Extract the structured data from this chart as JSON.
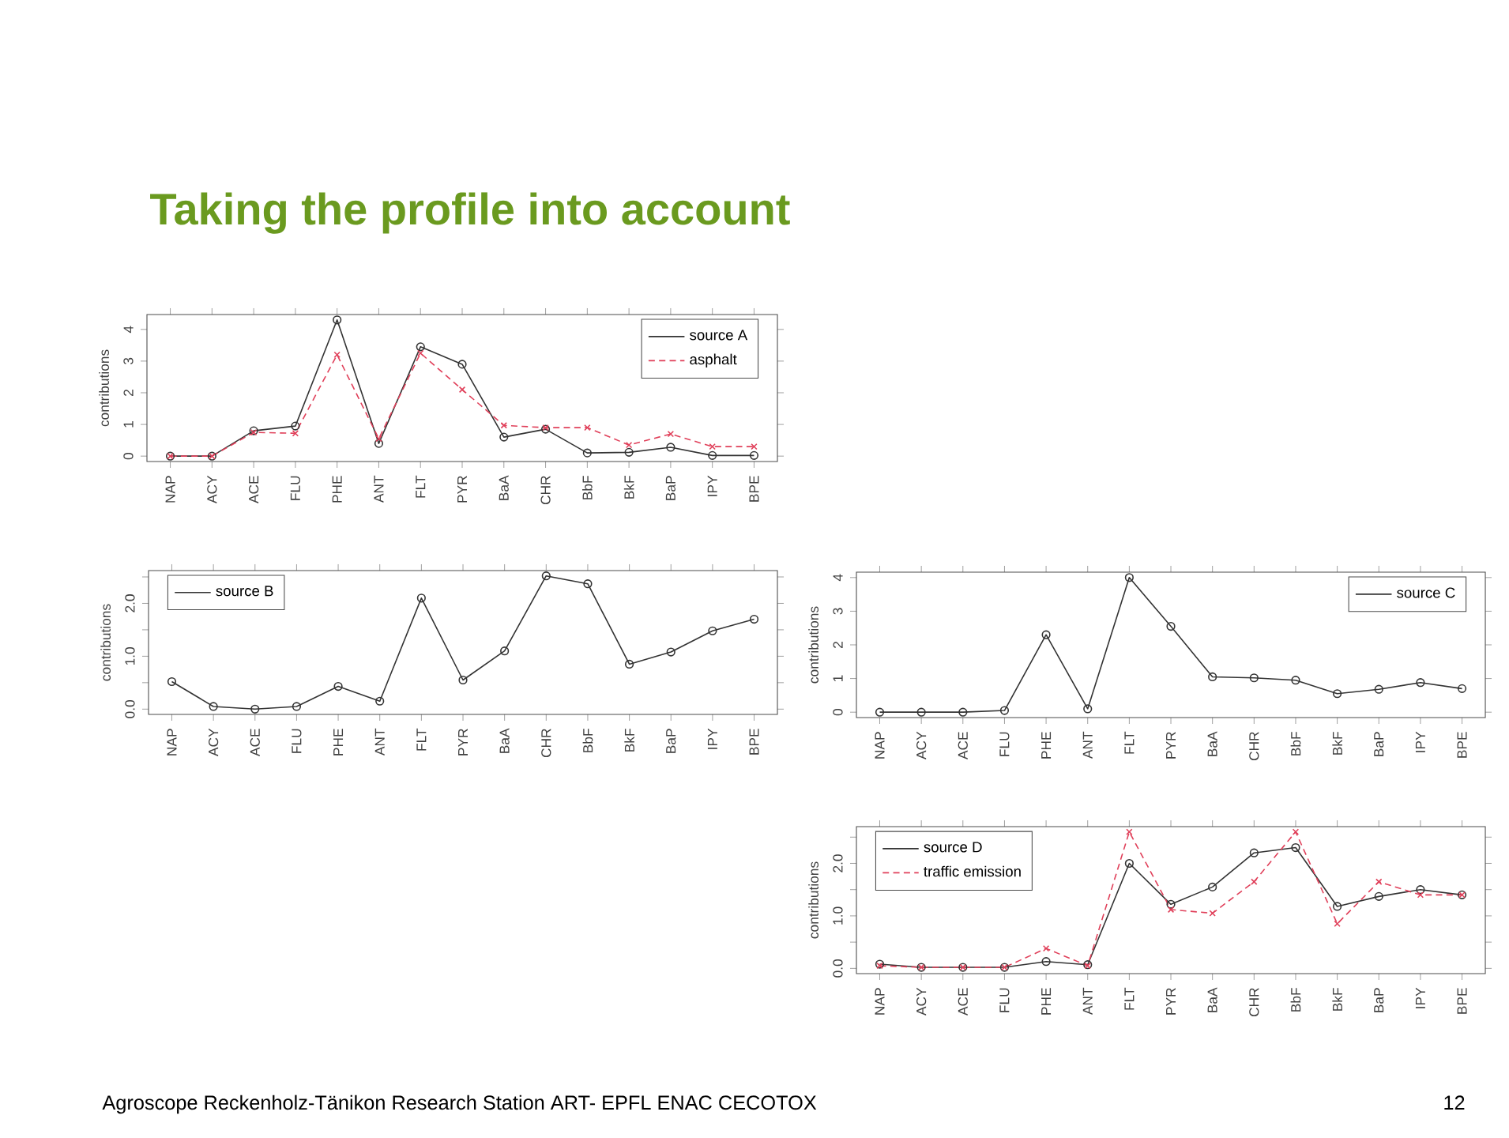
{
  "chart_data": [
    {
      "type": "line",
      "title": "Taking the profile into account",
      "ylabel": "contributions",
      "annotations": [
        "Agroscope Reckenholz-Tänikon Research Station ART- EPFL ENAC CECOTOX",
        "12"
      ],
      "categories": [
        "NAP",
        "ACY",
        "ACE",
        "FLU",
        "PHE",
        "ANT",
        "FLT",
        "PYR",
        "BaA",
        "CHR",
        "BbF",
        "BkF",
        "BaP",
        "IPY",
        "BPE"
      ],
      "series": [
        {
          "name": "source A",
          "color": "#333333",
          "marker": "circle",
          "line_style": "solid",
          "values": [
            0,
            0,
            0.8,
            0.95,
            4.3,
            0.4,
            3.45,
            2.9,
            0.6,
            0.85,
            0.1,
            0.12,
            0.28,
            0.02,
            0.02
          ]
        },
        {
          "name": "asphalt",
          "color": "#e0405a",
          "marker": "cross",
          "line_style": "dashed",
          "values": [
            0,
            0,
            0.75,
            0.72,
            3.2,
            0.55,
            3.25,
            2.1,
            0.97,
            0.9,
            0.9,
            0.35,
            0.7,
            0.3,
            0.3
          ]
        }
      ],
      "ylim": [
        -0.17,
        4.47
      ],
      "yticks": [
        0,
        1,
        2,
        3,
        4
      ],
      "legend": "top right",
      "grid": false
    },
    {
      "type": "line",
      "ylabel": "contributions",
      "categories": [
        "NAP",
        "ACY",
        "ACE",
        "FLU",
        "PHE",
        "ANT",
        "FLT",
        "PYR",
        "BaA",
        "CHR",
        "BbF",
        "BkF",
        "BaP",
        "IPY",
        "BPE"
      ],
      "series": [
        {
          "name": "source B",
          "color": "#333333",
          "marker": "circle",
          "line_style": "solid",
          "values": [
            0.52,
            0.05,
            0,
            0.05,
            0.43,
            0.15,
            2.1,
            0.55,
            1.1,
            2.52,
            2.37,
            0.85,
            1.08,
            1.48,
            1.7
          ]
        }
      ],
      "ylim": [
        -0.1,
        2.62
      ],
      "yticks": [
        {
          "value": 0,
          "label": "0.0"
        },
        {
          "value": 0.5,
          "label": null
        },
        {
          "value": 1,
          "label": "1.0"
        },
        {
          "value": 1.5,
          "label": null
        },
        {
          "value": 2,
          "label": "2.0"
        },
        {
          "value": 2.5,
          "label": null
        }
      ],
      "legend": "top left",
      "grid": false
    },
    {
      "type": "line",
      "ylabel": "contributions",
      "categories": [
        "NAP",
        "ACY",
        "ACE",
        "FLU",
        "PHE",
        "ANT",
        "FLT",
        "PYR",
        "BaA",
        "CHR",
        "BbF",
        "BkF",
        "BaP",
        "IPY",
        "BPE"
      ],
      "series": [
        {
          "name": "source C",
          "color": "#333333",
          "marker": "circle",
          "line_style": "solid",
          "values": [
            0,
            0,
            0,
            0.05,
            2.3,
            0.1,
            4.0,
            2.55,
            1.05,
            1.02,
            0.95,
            0.55,
            0.68,
            0.88,
            0.7
          ]
        }
      ],
      "ylim": [
        -0.16,
        4.16
      ],
      "yticks": [
        0,
        1,
        2,
        3,
        4
      ],
      "legend": "top right",
      "grid": false
    },
    {
      "type": "line",
      "ylabel": "contributions",
      "categories": [
        "NAP",
        "ACY",
        "ACE",
        "FLU",
        "PHE",
        "ANT",
        "FLT",
        "PYR",
        "BaA",
        "CHR",
        "BbF",
        "BkF",
        "BaP",
        "IPY",
        "BPE"
      ],
      "series": [
        {
          "name": "source D",
          "color": "#333333",
          "marker": "circle",
          "line_style": "solid",
          "values": [
            0.08,
            0.02,
            0.02,
            0.02,
            0.13,
            0.07,
            2.0,
            1.22,
            1.55,
            2.2,
            2.3,
            1.18,
            1.37,
            1.5,
            1.4
          ]
        },
        {
          "name": "traffic emission",
          "color": "#e0405a",
          "marker": "cross",
          "line_style": "dashed",
          "values": [
            0.05,
            0.02,
            0.02,
            0.02,
            0.38,
            0.05,
            2.6,
            1.12,
            1.05,
            1.65,
            2.6,
            0.85,
            1.65,
            1.4,
            1.4
          ]
        }
      ],
      "ylim": [
        -0.1,
        2.7
      ],
      "yticks": [
        {
          "value": 0,
          "label": "0.0"
        },
        {
          "value": 0.5,
          "label": null
        },
        {
          "value": 1,
          "label": "1.0"
        },
        {
          "value": 1.5,
          "label": null
        },
        {
          "value": 2,
          "label": "2.0"
        },
        {
          "value": 2.5,
          "label": null
        }
      ],
      "legend": "top left",
      "grid": false
    }
  ]
}
